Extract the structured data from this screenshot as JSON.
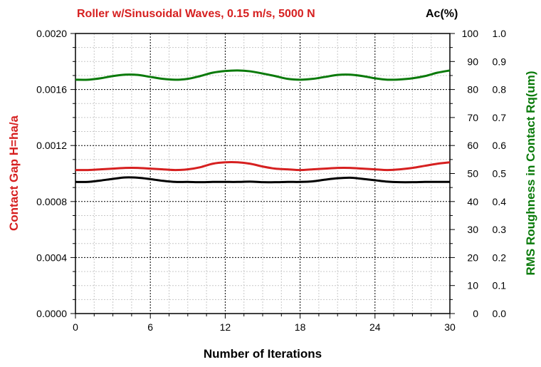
{
  "chart_data": {
    "type": "line",
    "title": "Roller w/Sinusoidal Waves, 0.15 m/s, 5000 N",
    "xlabel": "Number of Iterations",
    "ylabel_left": "Contact Gap H=ha/a",
    "ylabel_right_top": "Ac(%)",
    "ylabel_right": "RMS Roughness in Contact Rq(um)",
    "xlim": [
      0,
      30
    ],
    "x_ticks": [
      "0",
      "6",
      "12",
      "18",
      "24",
      "30"
    ],
    "y_left_lim": [
      0,
      0.002
    ],
    "y_left_ticks": [
      "0.0000",
      "0.0004",
      "0.0008",
      "0.0012",
      "0.0016",
      "0.0020"
    ],
    "y_ac_lim": [
      0,
      100
    ],
    "y_ac_ticks": [
      "0",
      "10",
      "20",
      "30",
      "40",
      "50",
      "60",
      "70",
      "80",
      "90",
      "100"
    ],
    "y_rq_lim": [
      0,
      1.0
    ],
    "y_rq_ticks": [
      "0.0",
      "0.1",
      "0.2",
      "0.3",
      "0.4",
      "0.5",
      "0.6",
      "0.7",
      "0.8",
      "0.9",
      "1.0"
    ],
    "grid": true,
    "colors": {
      "title": "#d62020",
      "contact_gap": "#d62020",
      "ac": "#000000",
      "rq": "#0a7a0a",
      "grid_major": "#000000",
      "grid_minor": "#c8c8c8"
    },
    "series": [
      {
        "axis": "left",
        "color": "#d62020",
        "x": [
          0,
          1,
          2,
          3,
          4,
          5,
          6,
          7,
          8,
          9,
          10,
          11,
          12,
          13,
          14,
          15,
          16,
          17,
          18,
          19,
          20,
          21,
          22,
          23,
          24,
          25,
          26,
          27,
          28,
          29,
          30
        ],
        "values": [
          0.001025,
          0.001025,
          0.00103,
          0.001035,
          0.00104,
          0.00104,
          0.001035,
          0.00103,
          0.001025,
          0.00103,
          0.001045,
          0.00107,
          0.00108,
          0.00108,
          0.00107,
          0.00105,
          0.001035,
          0.00103,
          0.001025,
          0.00103,
          0.001035,
          0.00104,
          0.00104,
          0.001035,
          0.00103,
          0.001025,
          0.00103,
          0.00104,
          0.001055,
          0.00107,
          0.00108
        ]
      },
      {
        "axis": "ac",
        "color": "#000000",
        "x": [
          0,
          1,
          2,
          3,
          4,
          5,
          6,
          7,
          8,
          9,
          10,
          11,
          12,
          13,
          14,
          15,
          16,
          17,
          18,
          19,
          20,
          21,
          22,
          23,
          24,
          25,
          26,
          27,
          28,
          29,
          30
        ],
        "values": [
          47,
          47,
          47.5,
          48.1,
          48.6,
          48.5,
          48,
          47.4,
          47,
          47,
          46.9,
          47,
          47,
          47,
          47.1,
          46.9,
          46.9,
          47,
          47,
          47.2,
          47.8,
          48.3,
          48.5,
          48.1,
          47.6,
          47.1,
          46.9,
          46.9,
          47,
          47,
          47
        ]
      },
      {
        "axis": "rq",
        "color": "#0a7a0a",
        "x": [
          0,
          1,
          2,
          3,
          4,
          5,
          6,
          7,
          8,
          9,
          10,
          11,
          12,
          13,
          14,
          15,
          16,
          17,
          18,
          19,
          20,
          21,
          22,
          23,
          24,
          25,
          26,
          27,
          28,
          29,
          30
        ],
        "values": [
          0.835,
          0.835,
          0.84,
          0.848,
          0.853,
          0.852,
          0.845,
          0.838,
          0.835,
          0.838,
          0.848,
          0.86,
          0.866,
          0.868,
          0.865,
          0.857,
          0.848,
          0.838,
          0.835,
          0.838,
          0.845,
          0.852,
          0.853,
          0.848,
          0.84,
          0.835,
          0.836,
          0.84,
          0.848,
          0.86,
          0.868
        ]
      }
    ]
  }
}
